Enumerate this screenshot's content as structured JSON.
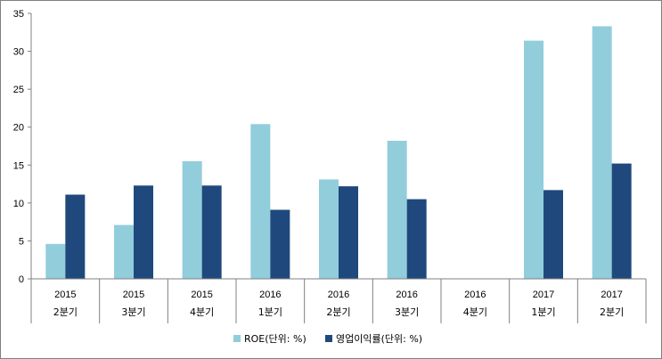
{
  "chart_data": {
    "type": "bar",
    "title": "",
    "xlabel": "",
    "ylabel": "",
    "ylim": [
      0,
      35
    ],
    "yticks": [
      0,
      5,
      10,
      15,
      20,
      25,
      30,
      35
    ],
    "grid": false,
    "legend_position": "bottom",
    "categories": [
      {
        "year": "2015",
        "quarter": "2분기"
      },
      {
        "year": "2015",
        "quarter": "3분기"
      },
      {
        "year": "2015",
        "quarter": "4분기"
      },
      {
        "year": "2016",
        "quarter": "1분기"
      },
      {
        "year": "2016",
        "quarter": "2분기"
      },
      {
        "year": "2016",
        "quarter": "3분기"
      },
      {
        "year": "2016",
        "quarter": "4분기"
      },
      {
        "year": "2017",
        "quarter": "1분기"
      },
      {
        "year": "2017",
        "quarter": "2분기"
      }
    ],
    "series": [
      {
        "name": "ROE(단위: %)",
        "color": "#92cddc",
        "values": [
          4.6,
          7.1,
          15.5,
          20.4,
          13.1,
          18.2,
          null,
          31.4,
          33.3
        ]
      },
      {
        "name": "영업이익률(단위: %)",
        "color": "#1f497d",
        "values": [
          11.1,
          12.3,
          12.3,
          9.1,
          12.2,
          10.5,
          null,
          11.7,
          15.2
        ]
      }
    ]
  }
}
